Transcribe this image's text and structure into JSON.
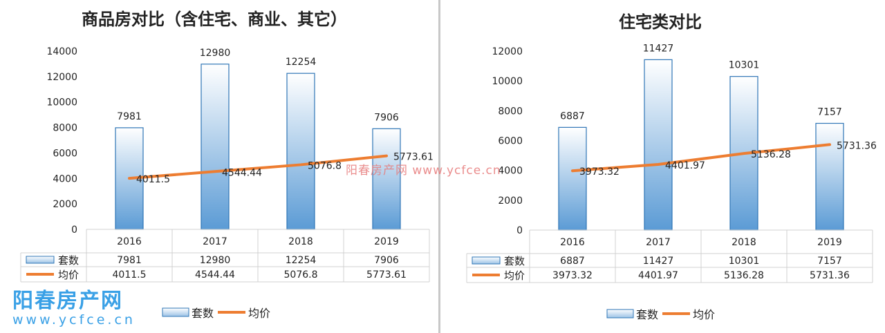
{
  "chart_data": [
    {
      "type": "bar+line",
      "title": "商品房对比（含住宅、商业、其它）",
      "categories": [
        "2016",
        "2017",
        "2018",
        "2019"
      ],
      "ylim": [
        0,
        14000
      ],
      "yticks": [
        0,
        2000,
        4000,
        6000,
        8000,
        10000,
        12000,
        14000
      ],
      "series": [
        {
          "name": "套数",
          "kind": "bar",
          "values": [
            7981,
            12980,
            12254,
            7906
          ],
          "labels": [
            "7981",
            "12980",
            "12254",
            "7906"
          ]
        },
        {
          "name": "均价",
          "kind": "line",
          "values": [
            4011.5,
            4544.44,
            5076.8,
            5773.61
          ],
          "labels": [
            "4011.5",
            "4544.44",
            "5076.8",
            "5773.61"
          ]
        }
      ],
      "legend": [
        "套数",
        "均价"
      ],
      "legend_placement": "bottom",
      "data_table": true,
      "grid": false
    },
    {
      "type": "bar+line",
      "title": "住宅类对比",
      "categories": [
        "2016",
        "2017",
        "2018",
        "2019"
      ],
      "ylim": [
        0,
        12000
      ],
      "yticks": [
        0,
        2000,
        4000,
        6000,
        8000,
        10000,
        12000
      ],
      "series": [
        {
          "name": "套数",
          "kind": "bar",
          "values": [
            6887,
            11427,
            10301,
            7157
          ],
          "labels": [
            "6887",
            "11427",
            "10301",
            "7157"
          ]
        },
        {
          "name": "均价",
          "kind": "line",
          "values": [
            3973.32,
            4401.97,
            5136.28,
            5731.36
          ],
          "labels": [
            "3973.32",
            "4401.97",
            "5136.28",
            "5731.36"
          ]
        }
      ],
      "legend": [
        "套数",
        "均价"
      ],
      "legend_placement": "bottom",
      "data_table": true,
      "grid": false
    }
  ],
  "colors": {
    "bar_fill_top": "#ffffff",
    "bar_fill_bottom": "#5b9bd5",
    "bar_stroke": "#2e75b6",
    "line": "#ed7d31",
    "table_border": "#d0d0d0",
    "text": "#222222"
  },
  "watermark": {
    "center": "阳春房产网   www.ycfce.cn",
    "logo_name": "阳春房产网",
    "logo_url": "www.ycfce.cn"
  }
}
